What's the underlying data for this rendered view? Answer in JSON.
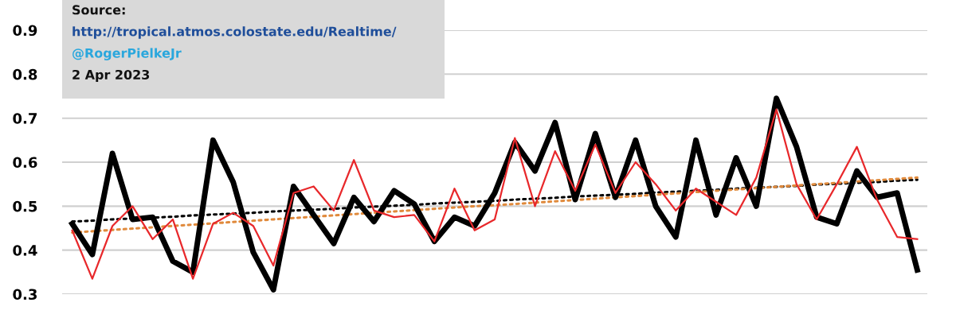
{
  "chart_data": {
    "type": "line",
    "categories": [
      null,
      null,
      null,
      null,
      null,
      null,
      null,
      null,
      null,
      null,
      null,
      null,
      null,
      null,
      null,
      null,
      null,
      null,
      null,
      null,
      null,
      null,
      null,
      null,
      null,
      null,
      null,
      null,
      null,
      null,
      null,
      null,
      null,
      null,
      null,
      null,
      null,
      null,
      null,
      null,
      null,
      null,
      null
    ],
    "series": [
      {
        "color": "#000000",
        "values": [
          0.46,
          0.39,
          0.62,
          0.47,
          0.475,
          0.375,
          0.35,
          0.65,
          0.555,
          0.395,
          0.31,
          0.545,
          0.48,
          0.415,
          0.52,
          0.465,
          0.535,
          0.505,
          0.42,
          0.475,
          0.455,
          0.53,
          0.645,
          0.58,
          0.69,
          0.515,
          0.665,
          0.52,
          0.65,
          0.5,
          0.43,
          0.65,
          0.48,
          0.61,
          0.5,
          0.745,
          0.635,
          0.475,
          0.46,
          0.58,
          0.52,
          0.53,
          0.355
        ]
      },
      {
        "color": "#e8282b",
        "values": [
          0.445,
          0.335,
          0.455,
          0.5,
          0.425,
          0.47,
          0.335,
          0.46,
          0.485,
          0.455,
          0.365,
          0.53,
          0.545,
          0.49,
          0.605,
          0.49,
          0.475,
          0.48,
          0.42,
          0.54,
          0.445,
          0.47,
          0.655,
          0.5,
          0.625,
          0.535,
          0.64,
          0.53,
          0.6,
          0.55,
          0.49,
          0.54,
          0.51,
          0.48,
          0.565,
          0.72,
          0.55,
          0.47,
          0.55,
          0.635,
          0.515,
          0.43,
          0.425
        ]
      },
      {
        "color": "#000000",
        "line_style": "dotted",
        "values": [
          0.465,
          0.467,
          0.47,
          0.472,
          0.474,
          0.476,
          0.479,
          0.481,
          0.483,
          0.485,
          0.488,
          0.49,
          0.492,
          0.494,
          0.497,
          0.499,
          0.501,
          0.503,
          0.506,
          0.508,
          0.51,
          0.512,
          0.515,
          0.517,
          0.519,
          0.522,
          0.524,
          0.526,
          0.528,
          0.531,
          0.533,
          0.535,
          0.537,
          0.54,
          0.542,
          0.544,
          0.546,
          0.549,
          0.551,
          0.553,
          0.555,
          0.558,
          0.56
        ]
      },
      {
        "color": "#e08a3c",
        "line_style": "dotted",
        "values": [
          0.44,
          0.443,
          0.446,
          0.449,
          0.452,
          0.455,
          0.458,
          0.461,
          0.464,
          0.467,
          0.47,
          0.473,
          0.476,
          0.479,
          0.482,
          0.485,
          0.488,
          0.491,
          0.494,
          0.497,
          0.5,
          0.502,
          0.505,
          0.508,
          0.511,
          0.514,
          0.517,
          0.52,
          0.523,
          0.526,
          0.529,
          0.532,
          0.535,
          0.538,
          0.541,
          0.544,
          0.547,
          0.55,
          0.553,
          0.556,
          0.559,
          0.562,
          0.565
        ]
      }
    ],
    "ylim": [
      0.3,
      0.9
    ],
    "yticks": [
      0.3,
      0.4,
      0.5,
      0.6,
      0.7,
      0.8,
      0.9
    ],
    "grid": "y",
    "annotations": [
      "Source:",
      "http://tropical.atmos.colostate.edu/Realtime/",
      "@RogerPielkeJr",
      "2 Apr 2023"
    ]
  }
}
